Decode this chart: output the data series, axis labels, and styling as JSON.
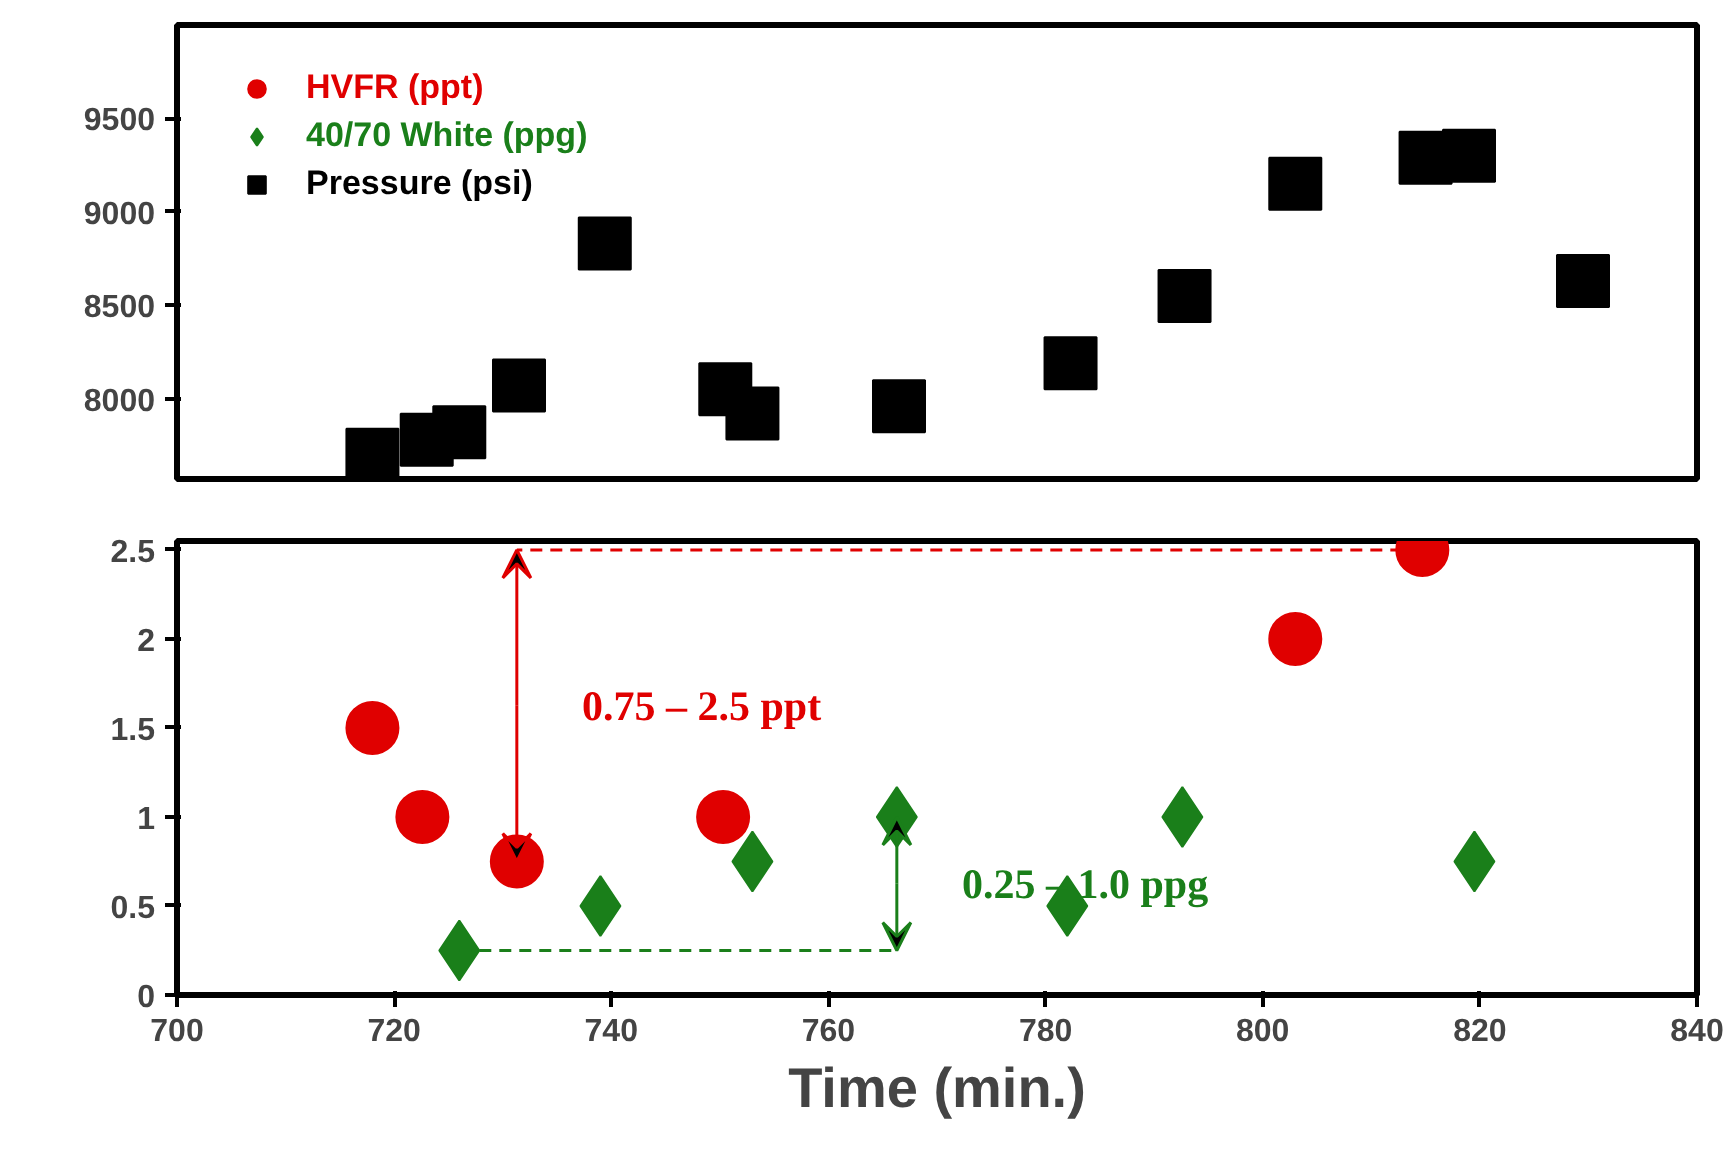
{
  "chart_data": [
    {
      "type": "scatter",
      "xlim": [
        700,
        840
      ],
      "ylim": [
        7570,
        10000
      ],
      "yticks": [
        8000,
        8500,
        9000,
        9500
      ],
      "tick_labels": "y",
      "legend": "top left",
      "marker": "square",
      "grid": false,
      "series": [
        {
          "name": "Pressure (psi)",
          "color": "#000000",
          "x": [
            718,
            723,
            726,
            731.5,
            739.4,
            750.5,
            753,
            766.5,
            782.3,
            792.8,
            803,
            815,
            819,
            829.5
          ],
          "values": [
            7700,
            7780,
            7820,
            8070,
            8830,
            8050,
            7920,
            7960,
            8190,
            8550,
            9150,
            9290,
            9300,
            8630
          ]
        }
      ]
    },
    {
      "type": "scatter",
      "xlim": [
        700,
        840
      ],
      "xticks": [
        700,
        720,
        740,
        760,
        780,
        800,
        820,
        840
      ],
      "ylim": [
        0,
        2.55
      ],
      "yticks": [
        0,
        0.5,
        1,
        1.5,
        2,
        2.5
      ],
      "xlabel": "Time (min.)",
      "legend": "top left",
      "grid": false,
      "series": [
        {
          "name": "HVFR (ppt)",
          "color": "#e00000",
          "marker": "circle",
          "x": [
            718,
            722.6,
            731.3,
            750.3,
            803,
            814.7
          ],
          "values": [
            1.5,
            1,
            0.75,
            1,
            2,
            2.5
          ]
        },
        {
          "name": "40/70 White (ppg)",
          "color": "#1a7f1a",
          "marker": "diamond",
          "x": [
            726,
            739,
            753,
            766.3,
            782,
            792.6,
            819.5
          ],
          "values": [
            0.25,
            0.5,
            0.75,
            1,
            0.5,
            1,
            0.75
          ]
        }
      ],
      "annotations": [
        "0.75 – 2.5 ppt",
        "0.25 – 1.0 ppg"
      ]
    }
  ]
}
